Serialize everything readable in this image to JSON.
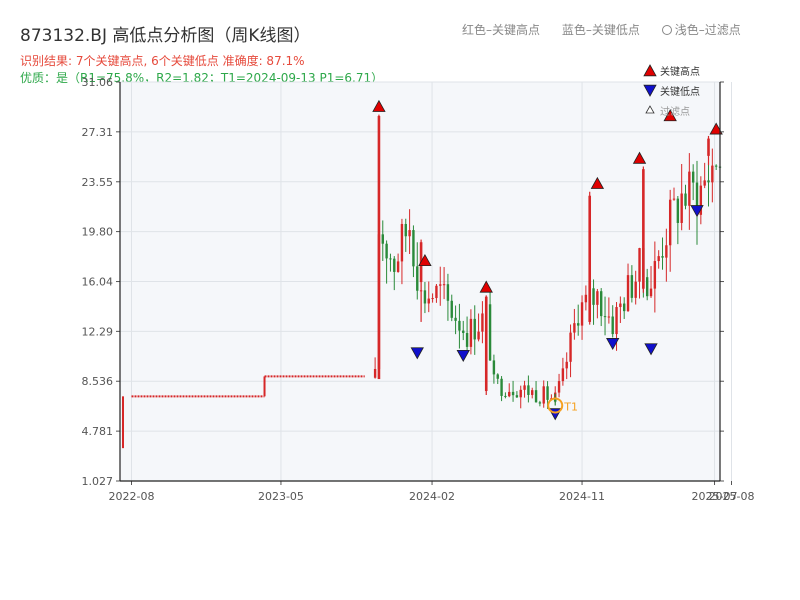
{
  "header": {
    "title": "873132.BJ 高低点分析图（周K线图）",
    "result": "识别结果: 7个关键高点, 6个关键低点  准确度: 87.1%",
    "quality": "优质：是（R1=75.8%，R2=1.82；T1=2024-09-13 P1=6.71）"
  },
  "top_legend": {
    "red": "红色–关键高点",
    "blue": "蓝色–关键低点",
    "light": "浅色–过滤点"
  },
  "chart_data": {
    "type": "candlestick",
    "title": "873132.BJ 高低点分析图（周K线图）",
    "y_ticks": [
      "1.027",
      "4.781",
      "8.536",
      "12.29",
      "16.04",
      "19.80",
      "23.55",
      "27.31",
      "31.06"
    ],
    "ylim": [
      1.027,
      31.06
    ],
    "x_ticks": [
      "2022-08",
      "2023-05",
      "2024-02",
      "2024-11",
      "2025-07",
      "2025-08"
    ],
    "legend": [
      "关键高点",
      "关键低点",
      "过滤点"
    ],
    "annotation": "T1",
    "colors": {
      "up": "#d62728",
      "down": "#2a8a3a",
      "high": "#e00000",
      "low": "#1010cc",
      "t1": "#f5a020",
      "grid": "#dfe3e8",
      "bg": "#f5f7fa"
    },
    "flat_segments": [
      {
        "from": "2022-08",
        "to": "2023-04",
        "value": 7.4
      },
      {
        "from": "2023-04",
        "to": "2023-10",
        "value": 8.9
      }
    ],
    "candles": [
      {
        "date": "2023-10-27",
        "open": 8.7,
        "close": 28.5,
        "high": 28.6,
        "low": 8.7
      },
      {
        "date": "2024-01-12",
        "open": 16.0,
        "close": 19.0,
        "high": 19.2,
        "low": 13.0
      },
      {
        "date": "2024-05-10",
        "open": 7.8,
        "close": 14.9,
        "high": 15.0,
        "low": 7.5
      },
      {
        "date": "2024-09-13",
        "open": 7.2,
        "close": 7.0,
        "high": 7.6,
        "low": 6.71
      },
      {
        "date": "2024-11-15",
        "open": 13.0,
        "close": 22.5,
        "high": 22.8,
        "low": 12.8
      },
      {
        "date": "2025-02-21",
        "open": 15.5,
        "close": 24.5,
        "high": 24.7,
        "low": 15.2
      },
      {
        "date": "2025-06-20",
        "open": 25.5,
        "close": 26.8,
        "high": 27.0,
        "low": 24.8
      }
    ],
    "key_highs": [
      {
        "date": "2023-10-27",
        "value": 28.6
      },
      {
        "date": "2024-01-19",
        "value": 17.0
      },
      {
        "date": "2024-05-10",
        "value": 15.0
      },
      {
        "date": "2024-11-29",
        "value": 22.8
      },
      {
        "date": "2025-02-14",
        "value": 24.7
      },
      {
        "date": "2025-04-11",
        "value": 27.9
      },
      {
        "date": "2025-07-04",
        "value": 26.9
      }
    ],
    "key_lows": [
      {
        "date": "2024-01-05",
        "value": 11.3
      },
      {
        "date": "2024-03-29",
        "value": 11.1
      },
      {
        "date": "2024-09-13",
        "value": 6.71
      },
      {
        "date": "2024-12-27",
        "value": 12.0
      },
      {
        "date": "2025-03-07",
        "value": 11.6
      },
      {
        "date": "2025-05-30",
        "value": 22.0
      }
    ]
  }
}
